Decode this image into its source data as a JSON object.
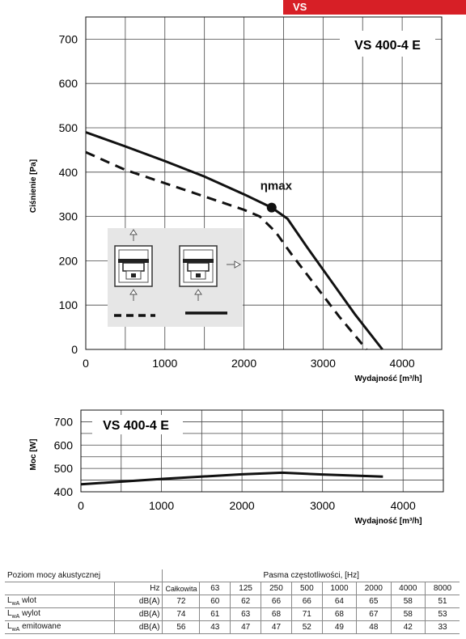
{
  "header": {
    "tab_label": "VS",
    "tab_color": "#d71f26"
  },
  "chart_data": [
    {
      "type": "line",
      "title": "VS 400-4 E",
      "xlabel": "Wydajność [m³/h]",
      "ylabel": "Ciśnienie [Pa]",
      "xlim": [
        0,
        4500
      ],
      "ylim": [
        0,
        750
      ],
      "xticks": [
        0,
        1000,
        2000,
        3000,
        4000
      ],
      "yticks": [
        0,
        100,
        200,
        300,
        400,
        500,
        600,
        700
      ],
      "grid": true,
      "series": [
        {
          "style": "solid",
          "x": [
            0,
            500,
            1000,
            1500,
            2000,
            2350,
            2550,
            2800,
            3100,
            3400,
            3750
          ],
          "y": [
            490,
            458,
            425,
            390,
            350,
            320,
            295,
            230,
            155,
            80,
            0
          ]
        },
        {
          "style": "dashed",
          "x": [
            0,
            500,
            1000,
            1500,
            2000,
            2200,
            2400,
            2600,
            2900,
            3200,
            3550
          ],
          "y": [
            445,
            405,
            375,
            345,
            315,
            300,
            265,
            215,
            145,
            75,
            0
          ]
        }
      ],
      "annotations": [
        {
          "label": "ηmax",
          "x": 2350,
          "y": 320
        }
      ],
      "inset": {
        "arrows": [
          "up",
          "up",
          "up",
          "right"
        ]
      }
    },
    {
      "type": "line",
      "title": "VS 400-4 E",
      "xlabel": "Wydajność [m³/h]",
      "ylabel": "Moc [W]",
      "xlim": [
        0,
        4500
      ],
      "ylim": [
        400,
        750
      ],
      "xticks": [
        0,
        1000,
        2000,
        3000,
        4000
      ],
      "yticks": [
        400,
        500,
        600,
        700
      ],
      "grid": true,
      "series": [
        {
          "style": "solid",
          "x": [
            0,
            1000,
            2000,
            2500,
            3000,
            3750
          ],
          "y": [
            432,
            455,
            475,
            482,
            474,
            465
          ]
        }
      ]
    }
  ],
  "acoustic_table": {
    "title": "Poziom mocy akustycznej",
    "band_title": "Pasma częstotliwości, [Hz]",
    "hz_label": "Hz",
    "columns": [
      "Całkowita",
      "63",
      "125",
      "250",
      "500",
      "1000",
      "2000",
      "4000",
      "8000"
    ],
    "rows": [
      {
        "label_main": "L",
        "label_sub": "wA",
        "label_rest": " wlot",
        "unit": "dB(A)",
        "values": [
          "72",
          "60",
          "62",
          "66",
          "66",
          "64",
          "65",
          "58",
          "51"
        ]
      },
      {
        "label_main": "L",
        "label_sub": "wA",
        "label_rest": " wylot",
        "unit": "dB(A)",
        "values": [
          "74",
          "61",
          "63",
          "68",
          "71",
          "68",
          "67",
          "58",
          "53"
        ]
      },
      {
        "label_main": "L",
        "label_sub": "wA",
        "label_rest": " emitowane",
        "unit": "dB(A)",
        "values": [
          "56",
          "43",
          "47",
          "47",
          "52",
          "49",
          "48",
          "42",
          "33"
        ]
      }
    ]
  }
}
